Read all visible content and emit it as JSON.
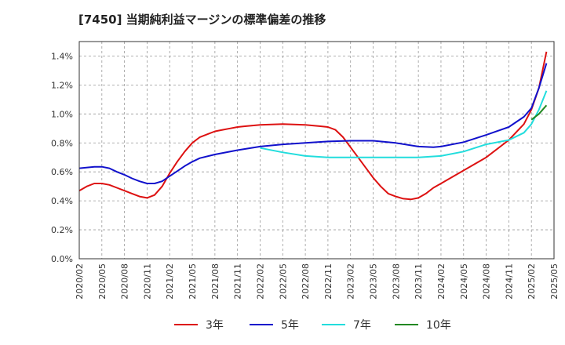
{
  "chart_data": {
    "type": "line",
    "title": "[7450]  当期純利益マージンの標準偏差の推移",
    "xlabel": "",
    "ylabel": "",
    "ylim": [
      0,
      1.5
    ],
    "yticks": [
      0.0,
      0.2,
      0.4,
      0.6,
      0.8,
      1.0,
      1.2,
      1.4
    ],
    "ytick_labels": [
      "0.0%",
      "0.2%",
      "0.4%",
      "0.6%",
      "0.8%",
      "1.0%",
      "1.2%",
      "1.4%"
    ],
    "xtick_labels": [
      "2020/02",
      "2020/05",
      "2020/08",
      "2020/11",
      "2021/02",
      "2021/05",
      "2021/08",
      "2021/11",
      "2022/02",
      "2022/05",
      "2022/08",
      "2022/11",
      "2023/02",
      "2023/05",
      "2023/08",
      "2023/11",
      "2024/02",
      "2024/05",
      "2024/08",
      "2024/11",
      "2025/02",
      "2025/05"
    ],
    "grid": true,
    "legend_position": "bottom",
    "series": [
      {
        "name": "3年",
        "color": "#dd1111",
        "points": [
          [
            "2020/02",
            0.47
          ],
          [
            "2020/03",
            0.5
          ],
          [
            "2020/04",
            0.52
          ],
          [
            "2020/05",
            0.52
          ],
          [
            "2020/06",
            0.51
          ],
          [
            "2020/07",
            0.49
          ],
          [
            "2020/08",
            0.47
          ],
          [
            "2020/09",
            0.45
          ],
          [
            "2020/10",
            0.43
          ],
          [
            "2020/11",
            0.42
          ],
          [
            "2020/12",
            0.44
          ],
          [
            "2021/01",
            0.5
          ],
          [
            "2021/02",
            0.59
          ],
          [
            "2021/03",
            0.67
          ],
          [
            "2021/04",
            0.74
          ],
          [
            "2021/05",
            0.8
          ],
          [
            "2021/06",
            0.84
          ],
          [
            "2021/07",
            0.86
          ],
          [
            "2021/08",
            0.88
          ],
          [
            "2021/09",
            0.89
          ],
          [
            "2021/10",
            0.9
          ],
          [
            "2021/11",
            0.91
          ],
          [
            "2021/12",
            0.915
          ],
          [
            "2022/01",
            0.92
          ],
          [
            "2022/02",
            0.925
          ],
          [
            "2022/05",
            0.93
          ],
          [
            "2022/08",
            0.925
          ],
          [
            "2022/10",
            0.915
          ],
          [
            "2022/11",
            0.91
          ],
          [
            "2022/12",
            0.89
          ],
          [
            "2023/01",
            0.84
          ],
          [
            "2023/02",
            0.77
          ],
          [
            "2023/03",
            0.7
          ],
          [
            "2023/04",
            0.63
          ],
          [
            "2023/05",
            0.56
          ],
          [
            "2023/06",
            0.5
          ],
          [
            "2023/07",
            0.45
          ],
          [
            "2023/08",
            0.43
          ],
          [
            "2023/09",
            0.415
          ],
          [
            "2023/10",
            0.41
          ],
          [
            "2023/11",
            0.42
          ],
          [
            "2023/12",
            0.45
          ],
          [
            "2024/01",
            0.49
          ],
          [
            "2024/02",
            0.52
          ],
          [
            "2024/05",
            0.61
          ],
          [
            "2024/08",
            0.7
          ],
          [
            "2024/11",
            0.82
          ],
          [
            "2025/01",
            0.93
          ],
          [
            "2025/02",
            1.03
          ],
          [
            "2025/03",
            1.18
          ],
          [
            "2025/04",
            1.43
          ]
        ]
      },
      {
        "name": "5年",
        "color": "#1111cc",
        "points": [
          [
            "2020/02",
            0.625
          ],
          [
            "2020/04",
            0.635
          ],
          [
            "2020/05",
            0.635
          ],
          [
            "2020/06",
            0.625
          ],
          [
            "2020/07",
            0.6
          ],
          [
            "2020/08",
            0.58
          ],
          [
            "2020/09",
            0.555
          ],
          [
            "2020/10",
            0.535
          ],
          [
            "2020/11",
            0.52
          ],
          [
            "2020/12",
            0.52
          ],
          [
            "2021/01",
            0.535
          ],
          [
            "2021/02",
            0.57
          ],
          [
            "2021/03",
            0.605
          ],
          [
            "2021/04",
            0.64
          ],
          [
            "2021/05",
            0.67
          ],
          [
            "2021/06",
            0.695
          ],
          [
            "2021/08",
            0.72
          ],
          [
            "2021/11",
            0.75
          ],
          [
            "2022/02",
            0.775
          ],
          [
            "2022/05",
            0.79
          ],
          [
            "2022/08",
            0.8
          ],
          [
            "2022/11",
            0.81
          ],
          [
            "2023/02",
            0.815
          ],
          [
            "2023/05",
            0.815
          ],
          [
            "2023/08",
            0.8
          ],
          [
            "2023/11",
            0.775
          ],
          [
            "2024/01",
            0.77
          ],
          [
            "2024/02",
            0.775
          ],
          [
            "2024/05",
            0.805
          ],
          [
            "2024/08",
            0.855
          ],
          [
            "2024/11",
            0.91
          ],
          [
            "2025/01",
            0.98
          ],
          [
            "2025/02",
            1.04
          ],
          [
            "2025/03",
            1.18
          ],
          [
            "2025/04",
            1.35
          ]
        ]
      },
      {
        "name": "7年",
        "color": "#22dddd",
        "points": [
          [
            "2022/02",
            0.765
          ],
          [
            "2022/05",
            0.735
          ],
          [
            "2022/08",
            0.71
          ],
          [
            "2022/11",
            0.7
          ],
          [
            "2023/02",
            0.7
          ],
          [
            "2023/05",
            0.7
          ],
          [
            "2023/08",
            0.7
          ],
          [
            "2023/11",
            0.7
          ],
          [
            "2024/02",
            0.71
          ],
          [
            "2024/05",
            0.74
          ],
          [
            "2024/08",
            0.79
          ],
          [
            "2024/11",
            0.82
          ],
          [
            "2025/01",
            0.87
          ],
          [
            "2025/02",
            0.93
          ],
          [
            "2025/03",
            1.03
          ],
          [
            "2025/04",
            1.16
          ]
        ]
      },
      {
        "name": "10年",
        "color": "#228822",
        "points": [
          [
            "2025/02",
            0.96
          ],
          [
            "2025/03",
            1.0
          ],
          [
            "2025/04",
            1.06
          ]
        ]
      }
    ]
  }
}
